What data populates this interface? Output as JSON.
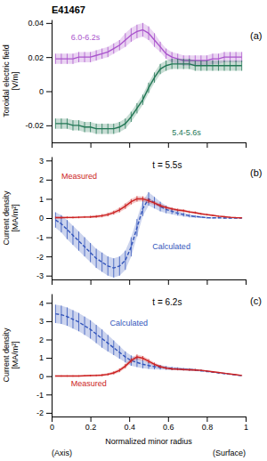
{
  "chart_data": [
    {
      "type": "line",
      "title": "E41467",
      "ylabel": "Toroidal electric field\n[V/m]",
      "xlim": [
        0,
        1
      ],
      "xticks": [
        0,
        0.2,
        0.4,
        0.6,
        0.8,
        1
      ],
      "ylim": [
        -0.03,
        0.042
      ],
      "yticks": [
        -0.02,
        0,
        0.02,
        0.04
      ],
      "tick_labels": "y",
      "annotations": [
        "(a)"
      ],
      "x": [
        0.02,
        0.05,
        0.08,
        0.11,
        0.14,
        0.17,
        0.2,
        0.23,
        0.26,
        0.29,
        0.32,
        0.35,
        0.38,
        0.41,
        0.44,
        0.47,
        0.5,
        0.53,
        0.56,
        0.59,
        0.62,
        0.65,
        0.68,
        0.71,
        0.74,
        0.77,
        0.8,
        0.83,
        0.86,
        0.89,
        0.92,
        0.95,
        0.98
      ],
      "series": [
        {
          "name": "6.0-6.2s",
          "color": "#AA55CC",
          "line_style": "solid",
          "values": [
            0.019,
            0.019,
            0.019,
            0.019,
            0.02,
            0.02,
            0.02,
            0.021,
            0.022,
            0.023,
            0.025,
            0.027,
            0.03,
            0.033,
            0.035,
            0.036,
            0.034,
            0.03,
            0.026,
            0.022,
            0.02,
            0.019,
            0.018,
            0.018,
            0.018,
            0.018,
            0.018,
            0.019,
            0.019,
            0.02,
            0.02,
            0.02,
            0.02
          ],
          "errors": [
            0.003,
            0.003,
            0.003,
            0.003,
            0.003,
            0.003,
            0.003,
            0.003,
            0.003,
            0.003,
            0.003,
            0.003,
            0.004,
            0.004,
            0.004,
            0.004,
            0.004,
            0.004,
            0.003,
            0.003,
            0.003,
            0.003,
            0.003,
            0.003,
            0.003,
            0.003,
            0.003,
            0.003,
            0.003,
            0.003,
            0.003,
            0.003,
            0.003
          ]
        },
        {
          "name": "5.4-5.6s",
          "color": "#227755",
          "line_style": "solid",
          "values": [
            -0.019,
            -0.019,
            -0.019,
            -0.02,
            -0.02,
            -0.021,
            -0.021,
            -0.022,
            -0.022,
            -0.022,
            -0.022,
            -0.021,
            -0.019,
            -0.015,
            -0.01,
            -0.005,
            0.002,
            0.008,
            0.013,
            0.015,
            0.016,
            0.016,
            0.016,
            0.016,
            0.015,
            0.015,
            0.015,
            0.015,
            0.015,
            0.015,
            0.015,
            0.015,
            0.015
          ],
          "errors": [
            0.003,
            0.003,
            0.003,
            0.003,
            0.003,
            0.003,
            0.003,
            0.003,
            0.003,
            0.003,
            0.003,
            0.003,
            0.003,
            0.003,
            0.003,
            0.003,
            0.003,
            0.003,
            0.003,
            0.003,
            0.003,
            0.003,
            0.003,
            0.003,
            0.003,
            0.003,
            0.003,
            0.003,
            0.003,
            0.003,
            0.003,
            0.003,
            0.003
          ]
        }
      ]
    },
    {
      "type": "line",
      "ylabel": "Current density\n[MA/m²]",
      "xlim": [
        0,
        1
      ],
      "xticks": [
        0,
        0.2,
        0.4,
        0.6,
        0.8,
        1
      ],
      "ylim": [
        -3.2,
        3.2
      ],
      "yticks": [
        -3,
        -2,
        -1,
        0,
        1,
        2,
        3
      ],
      "tick_labels": "y",
      "annotations": [
        "t = 5.5s",
        "(b)"
      ],
      "x": [
        0.02,
        0.05,
        0.08,
        0.11,
        0.14,
        0.17,
        0.2,
        0.23,
        0.26,
        0.29,
        0.32,
        0.35,
        0.38,
        0.41,
        0.44,
        0.47,
        0.5,
        0.53,
        0.56,
        0.59,
        0.62,
        0.65,
        0.68,
        0.71,
        0.74,
        0.77,
        0.8,
        0.83,
        0.86,
        0.89,
        0.92,
        0.95,
        0.98
      ],
      "series": [
        {
          "name": "Calculated",
          "color": "#3355BB",
          "line_style": "dashed",
          "values": [
            -0.1,
            -0.3,
            -0.6,
            -0.9,
            -1.2,
            -1.5,
            -1.8,
            -2.1,
            -2.3,
            -2.5,
            -2.6,
            -2.5,
            -2.2,
            -1.5,
            -0.5,
            0.5,
            1.0,
            0.8,
            0.6,
            0.45,
            0.35,
            0.25,
            0.18,
            0.12,
            0.08,
            0.05,
            0.02,
            0.01,
            0.01,
            0.0,
            0.0,
            0.0,
            0.0
          ],
          "errors": [
            0.4,
            0.45,
            0.5,
            0.5,
            0.5,
            0.5,
            0.5,
            0.5,
            0.5,
            0.5,
            0.5,
            0.5,
            0.5,
            0.5,
            0.45,
            0.4,
            0.35,
            0.3,
            0.25,
            0.2,
            0.15,
            0.12,
            0.1,
            0.08,
            0.06,
            0.05,
            0.04,
            0.03,
            0.02,
            0.02,
            0.02,
            0.02,
            0.02
          ]
        },
        {
          "name": "Measured",
          "color": "#CC2222",
          "line_style": "solid",
          "values": [
            0.02,
            0.02,
            0.03,
            0.03,
            0.04,
            0.05,
            0.06,
            0.08,
            0.12,
            0.18,
            0.28,
            0.42,
            0.62,
            0.85,
            1.0,
            1.0,
            0.9,
            0.78,
            0.65,
            0.55,
            0.48,
            0.42,
            0.38,
            0.32,
            0.28,
            0.22,
            0.18,
            0.14,
            0.1,
            0.07,
            0.04,
            0.02,
            0.01
          ],
          "errors": [
            0.05,
            0.05,
            0.05,
            0.05,
            0.05,
            0.05,
            0.06,
            0.07,
            0.08,
            0.09,
            0.1,
            0.12,
            0.14,
            0.14,
            0.14,
            0.13,
            0.12,
            0.1,
            0.09,
            0.08,
            0.07,
            0.07,
            0.07,
            0.06,
            0.06,
            0.05,
            0.05,
            0.04,
            0.04,
            0.03,
            0.03,
            0.02,
            0.02
          ]
        }
      ]
    },
    {
      "type": "line",
      "ylabel": "Current density\n[MA/m²]",
      "xlabel": "Normalized minor radius",
      "xlim": [
        0,
        1
      ],
      "xticks": [
        0,
        0.2,
        0.4,
        0.6,
        0.8,
        1
      ],
      "ylim": [
        -2.2,
        4.5
      ],
      "yticks": [
        -2,
        -1,
        0,
        1,
        2,
        3,
        4
      ],
      "annotations": [
        "t = 6.2s",
        "(c)",
        "(Axis)",
        "(Surface)"
      ],
      "x": [
        0.02,
        0.05,
        0.08,
        0.11,
        0.14,
        0.17,
        0.2,
        0.23,
        0.26,
        0.29,
        0.32,
        0.35,
        0.38,
        0.41,
        0.44,
        0.47,
        0.5,
        0.53,
        0.56,
        0.59,
        0.62,
        0.65,
        0.68,
        0.71,
        0.74,
        0.77,
        0.8,
        0.83,
        0.86,
        0.89,
        0.92,
        0.95,
        0.98
      ],
      "series": [
        {
          "name": "Calculated",
          "color": "#3355BB",
          "line_style": "dashed",
          "values": [
            3.4,
            3.35,
            3.25,
            3.1,
            2.95,
            2.75,
            2.55,
            2.3,
            2.05,
            1.8,
            1.55,
            1.3,
            1.05,
            0.85,
            0.75,
            0.65,
            0.58,
            0.52,
            0.48,
            0.45,
            0.42,
            0.4,
            0.38,
            0.36,
            0.34,
            0.3,
            0.26,
            0.22,
            0.18,
            0.14,
            0.1,
            0.06,
            0.03
          ],
          "errors": [
            0.5,
            0.5,
            0.5,
            0.5,
            0.5,
            0.5,
            0.5,
            0.5,
            0.5,
            0.45,
            0.4,
            0.35,
            0.3,
            0.28,
            0.25,
            0.22,
            0.18,
            0.15,
            0.12,
            0.1,
            0.09,
            0.08,
            0.07,
            0.07,
            0.06,
            0.05,
            0.05,
            0.04,
            0.03,
            0.03,
            0.02,
            0.02,
            0.01
          ]
        },
        {
          "name": "Measured",
          "color": "#CC2222",
          "line_style": "solid",
          "values": [
            0.01,
            0.01,
            0.01,
            0.01,
            0.01,
            0.02,
            0.03,
            0.04,
            0.06,
            0.1,
            0.18,
            0.32,
            0.55,
            0.85,
            1.05,
            0.98,
            0.82,
            0.65,
            0.52,
            0.44,
            0.4,
            0.38,
            0.36,
            0.35,
            0.34,
            0.32,
            0.28,
            0.24,
            0.2,
            0.16,
            0.12,
            0.08,
            0.04
          ],
          "errors": [
            0.04,
            0.04,
            0.04,
            0.04,
            0.04,
            0.04,
            0.05,
            0.05,
            0.06,
            0.07,
            0.08,
            0.1,
            0.12,
            0.13,
            0.13,
            0.12,
            0.11,
            0.09,
            0.08,
            0.07,
            0.06,
            0.06,
            0.05,
            0.05,
            0.05,
            0.04,
            0.04,
            0.04,
            0.03,
            0.03,
            0.02,
            0.02,
            0.02
          ]
        }
      ]
    }
  ]
}
